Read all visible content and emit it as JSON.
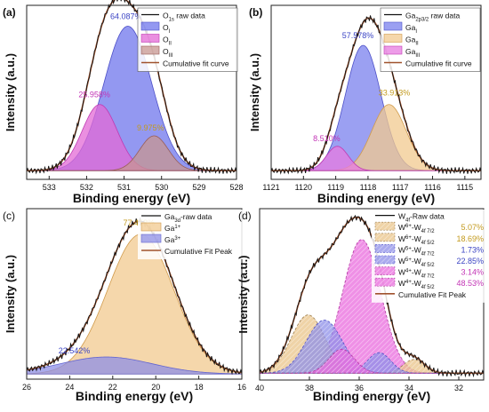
{
  "chart_data": [
    {
      "type": "area",
      "panel_label": "(a)",
      "xlabel": "Binding energy (eV)",
      "ylabel": "Intensity (a.u.)",
      "xlim": [
        533.6,
        528
      ],
      "x_reversed": true,
      "ticks": [
        {
          "v": 533,
          "t": "533"
        },
        {
          "v": 532,
          "t": "532"
        },
        {
          "v": 531,
          "t": "531"
        },
        {
          "v": 530,
          "t": "530"
        },
        {
          "v": 529,
          "t": "529"
        },
        {
          "v": 528,
          "t": "528"
        }
      ],
      "legend": {
        "raw": {
          "base": "O",
          "sub": "1s",
          "rest": " raw data"
        },
        "peaks": [
          {
            "base": "O",
            "sub": "I"
          },
          {
            "base": "O",
            "sub": "II"
          },
          {
            "base": "O",
            "sub": "III"
          }
        ],
        "fit": "Cumulative fit curve"
      },
      "raw": {
        "color": "#111111"
      },
      "fit": {
        "color": "#a0522d"
      },
      "baseline": 0.05,
      "peaks": [
        {
          "center": 530.9,
          "fwhm": 1.5,
          "height": 0.83,
          "fill": "#6f76ec",
          "edge": "#4c4fc7",
          "label": "64.087%",
          "label_color": "#3b44c4",
          "hatch": false
        },
        {
          "center": 531.65,
          "fwhm": 1.1,
          "height": 0.38,
          "fill": "#e36ad6",
          "edge": "#c03ab2",
          "label": "25.958%",
          "label_color": "#c335b6",
          "hatch": false
        },
        {
          "center": 530.2,
          "fwhm": 0.9,
          "height": 0.2,
          "fill": "#c79590",
          "edge": "#9a5d55",
          "label": "9.975%",
          "label_color": "#c39a1e",
          "hatch": false
        }
      ]
    },
    {
      "type": "area",
      "panel_label": "(b)",
      "xlabel": "Binding energy (eV)",
      "ylabel": "Intensity (a.u.)",
      "xlim": [
        1121,
        1114.5
      ],
      "x_reversed": true,
      "ticks": [
        {
          "v": 1121,
          "t": "1121"
        },
        {
          "v": 1120,
          "t": "1120"
        },
        {
          "v": 1119,
          "t": "1119"
        },
        {
          "v": 1118,
          "t": "1118"
        },
        {
          "v": 1117,
          "t": "1117"
        },
        {
          "v": 1116,
          "t": "1116"
        },
        {
          "v": 1115,
          "t": "1115"
        }
      ],
      "legend": {
        "raw": {
          "base": "Ga",
          "sub": "2p3/2",
          "rest": " raw data"
        },
        "peaks": [
          {
            "base": "Ga",
            "sub": "I"
          },
          {
            "base": "Ga",
            "sub": "II"
          },
          {
            "base": "Ga",
            "sub": "III"
          }
        ],
        "fit": "Cumulative fit curve"
      },
      "raw": {
        "color": "#111111"
      },
      "fit": {
        "color": "#a0522d"
      },
      "baseline": 0.05,
      "peaks": [
        {
          "center": 1118.15,
          "fwhm": 1.3,
          "height": 0.72,
          "fill": "#7a80ee",
          "edge": "#4c4fc7",
          "label": "57.578%",
          "label_color": "#3b44c4",
          "hatch": false
        },
        {
          "center": 1117.35,
          "fwhm": 1.25,
          "height": 0.38,
          "fill": "#f2c98f",
          "edge": "#d09a4a",
          "label": "33.913%",
          "label_color": "#c39a1e",
          "hatch": false
        },
        {
          "center": 1118.95,
          "fwhm": 0.8,
          "height": 0.14,
          "fill": "#e77be0",
          "edge": "#c03ab2",
          "label": "8.510%",
          "label_color": "#c335b6",
          "hatch": false
        }
      ]
    },
    {
      "type": "area",
      "panel_label": "(c)",
      "xlabel": "Binding energy (eV)",
      "ylabel": "Intensity (a.u.)",
      "xlim": [
        26,
        16
      ],
      "x_reversed": true,
      "ticks": [
        {
          "v": 26,
          "t": "26"
        },
        {
          "v": 24,
          "t": "24"
        },
        {
          "v": 22,
          "t": "22"
        },
        {
          "v": 20,
          "t": "20"
        },
        {
          "v": 18,
          "t": "18"
        },
        {
          "v": 16,
          "t": "16"
        }
      ],
      "legend": {
        "raw": {
          "base": "Ga",
          "sub": "3d",
          "rest": "-raw data"
        },
        "peaks": [
          {
            "base": "Ga",
            "sup": "1+"
          },
          {
            "base": "Ga",
            "sup": "3+"
          }
        ],
        "fit": "Cumulative Fit Peak"
      },
      "raw": {
        "color": "#111111"
      },
      "fit": {
        "color": "#a0522d"
      },
      "baseline": 0.03,
      "peaks": [
        {
          "center": 20.7,
          "fwhm": 3.6,
          "height": 0.82,
          "fill": "#f2c98f",
          "edge": "#d09a4a",
          "label": "77.458%",
          "label_color": "#c39a1e",
          "hatch": false
        },
        {
          "center": 22.3,
          "fwhm": 5.0,
          "height": 0.1,
          "fill": "#8e8fe6",
          "edge": "#6365cf",
          "label": "22.542%",
          "label_color": "#3b44c4",
          "hatch": false
        }
      ]
    },
    {
      "type": "area",
      "panel_label": "(d)",
      "xlabel": "Binding energy (eV)",
      "ylabel": "Intensity (a.u.)",
      "xlim": [
        40,
        31
      ],
      "x_reversed": true,
      "ticks": [
        {
          "v": 40,
          "t": "40"
        },
        {
          "v": 38,
          "t": "38"
        },
        {
          "v": 36,
          "t": "36"
        },
        {
          "v": 34,
          "t": "34"
        },
        {
          "v": 32,
          "t": "32"
        }
      ],
      "legend": {
        "raw": {
          "base": "W",
          "sub": "4f",
          "rest": "-Raw data"
        },
        "peaks": [
          {
            "base": "W",
            "sup": "6+",
            "mid": "-W",
            "sub": "4f 7/2",
            "pct": "5.07%",
            "pct_color": "#c39a1e"
          },
          {
            "base": "W",
            "sup": "6+",
            "mid": "-W",
            "sub": "4f 5/2",
            "pct": "18.69%",
            "pct_color": "#c39a1e"
          },
          {
            "base": "W",
            "sup": "5+",
            "mid": "-W",
            "sub": "4f 7/2",
            "pct": "1.73%",
            "pct_color": "#3b44c4"
          },
          {
            "base": "W",
            "sup": "5+",
            "mid": "-W",
            "sub": "4f 5/2",
            "pct": "22.85%",
            "pct_color": "#3b44c4"
          },
          {
            "base": "W",
            "sup": "4+",
            "mid": "-W",
            "sub": "4f 7/2",
            "pct": "3.14%",
            "pct_color": "#c335b6"
          },
          {
            "base": "W",
            "sup": "4+",
            "mid": "-W",
            "sub": "4f 5/2",
            "pct": "48.53%",
            "pct_color": "#c335b6"
          }
        ],
        "fit": "Cumulative Fit Peak"
      },
      "raw": {
        "color": "#111111"
      },
      "fit": {
        "color": "#a0522d"
      },
      "baseline": 0.04,
      "peaks": [
        {
          "center": 35.9,
          "fwhm": 1.8,
          "height": 0.78,
          "fill": "#e96bdd",
          "edge": "#b0359f",
          "hatch": true
        },
        {
          "center": 38.05,
          "fwhm": 1.6,
          "height": 0.34,
          "fill": "#e9c48a",
          "edge": "#9a7a4a",
          "hatch": true
        },
        {
          "center": 37.4,
          "fwhm": 1.7,
          "height": 0.31,
          "fill": "#8d8fe8",
          "edge": "#4c4fc7",
          "hatch": true
        },
        {
          "center": 33.8,
          "fwhm": 1.0,
          "height": 0.08,
          "fill": "#e9c48a",
          "edge": "#9a7a4a",
          "hatch": true
        },
        {
          "center": 35.2,
          "fwhm": 1.1,
          "height": 0.12,
          "fill": "#8d8fe8",
          "edge": "#4c4fc7",
          "hatch": true
        },
        {
          "center": 36.7,
          "fwhm": 1.2,
          "height": 0.14,
          "fill": "#e96bdd",
          "edge": "#b0359f",
          "hatch": true
        }
      ]
    }
  ]
}
